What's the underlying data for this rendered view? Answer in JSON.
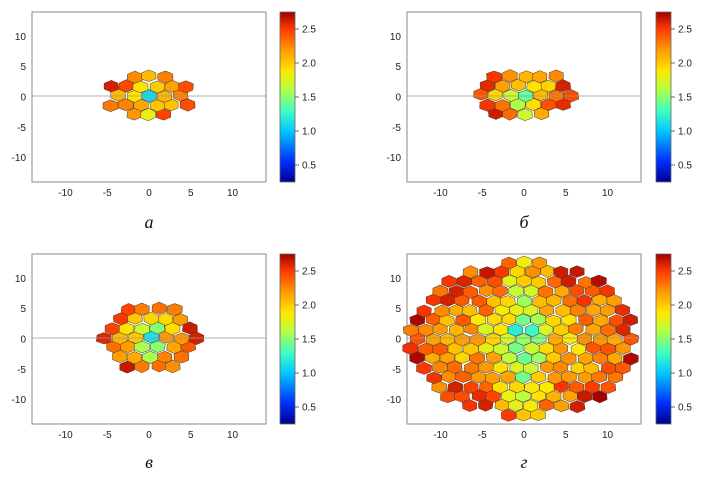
{
  "chart_data": [
    {
      "type": "heatmap",
      "caption": "а",
      "x_ticks": [
        -10,
        -5,
        0,
        5,
        10
      ],
      "y_ticks": [
        10,
        5,
        0,
        -5,
        -10
      ],
      "xlim": [
        -14,
        14
      ],
      "ylim": [
        -14,
        14
      ],
      "colorbar": {
        "min": 0.25,
        "max": 2.75,
        "ticks": [
          2.5,
          2.0,
          1.5,
          1.0,
          0.5
        ]
      },
      "tissue": {
        "cx": 0,
        "cy": 0.2,
        "rx": 5.2,
        "ry": 3.6
      }
    },
    {
      "type": "heatmap",
      "caption": "б",
      "x_ticks": [
        -10,
        -5,
        0,
        5,
        10
      ],
      "y_ticks": [
        10,
        5,
        0,
        -5,
        -10
      ],
      "xlim": [
        -14,
        14
      ],
      "ylim": [
        -14,
        14
      ],
      "colorbar": {
        "min": 0.25,
        "max": 2.75,
        "ticks": [
          2.5,
          2.0,
          1.5,
          1.0,
          0.5
        ]
      },
      "tissue": {
        "cx": 0.2,
        "cy": 0.3,
        "rx": 5.8,
        "ry": 4.2
      }
    },
    {
      "type": "heatmap",
      "caption": "в",
      "x_ticks": [
        -10,
        -5,
        0,
        5,
        10
      ],
      "y_ticks": [
        10,
        5,
        0,
        -5,
        -10
      ],
      "xlim": [
        -14,
        14
      ],
      "ylim": [
        -14,
        14
      ],
      "colorbar": {
        "min": 0.25,
        "max": 2.75,
        "ticks": [
          2.5,
          2.0,
          1.5,
          1.0,
          0.5
        ]
      },
      "tissue": {
        "cx": 0.2,
        "cy": 0.2,
        "rx": 6.0,
        "ry": 5.8
      }
    },
    {
      "type": "heatmap",
      "caption": "г",
      "x_ticks": [
        -10,
        -5,
        0,
        5,
        10
      ],
      "y_ticks": [
        10,
        5,
        0,
        -5,
        -10
      ],
      "xlim": [
        -14,
        14
      ],
      "ylim": [
        -14,
        14
      ],
      "colorbar": {
        "min": 0.25,
        "max": 2.75,
        "ticks": [
          2.5,
          2.0,
          1.5,
          1.0,
          0.5
        ]
      },
      "tissue": {
        "cx": 0,
        "cy": 0,
        "rx": 13.8,
        "ry": 12.8
      }
    }
  ],
  "colors": {
    "colormap": [
      "#00008f",
      "#0050ff",
      "#00d0ff",
      "#40ffb0",
      "#b0ff40",
      "#ffe000",
      "#ff9000",
      "#ff3000",
      "#a00000"
    ]
  }
}
